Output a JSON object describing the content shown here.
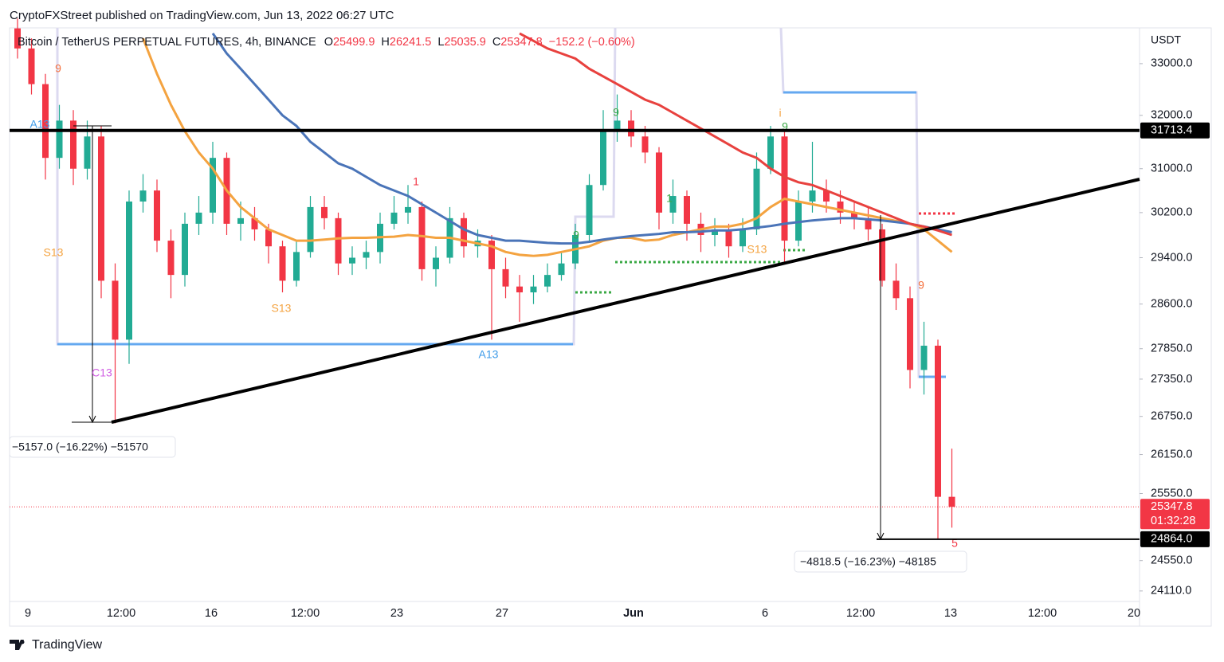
{
  "header": {
    "published": "CryptoFXStreet published on TradingView.com, Jun 13, 2022 06:27 UTC"
  },
  "chart_data": {
    "type": "candlestick",
    "title": "Bitcoin / TetherUS PERPETUAL FUTURES, 4h, BINANCE",
    "ohlc_prefixes": [
      "O",
      "H",
      "L",
      "C"
    ],
    "change": "−152.2 (−0.60%)",
    "currency": "USDT",
    "x_labels": [
      "9",
      "12:00",
      "16",
      "12:00",
      "23",
      "27",
      "Jun",
      "6",
      "12:00",
      "13",
      "12:00",
      "20"
    ],
    "up_color": "#22ab94",
    "down_color": "#f23645",
    "open": [
      33700,
      33300,
      32600,
      31200,
      31900,
      31000,
      31600,
      29000,
      28000,
      30400,
      30600,
      29700,
      29100,
      30000,
      30200,
      31200,
      30000,
      30100,
      29900,
      29600,
      29000,
      29500,
      30300,
      30100,
      29300,
      29400,
      29500,
      30000,
      30200,
      30300,
      29200,
      29400,
      30100,
      29600,
      29700,
      29200,
      28900,
      28800,
      28900,
      29100,
      29300,
      29800,
      30700,
      31700,
      31900,
      31600,
      31300,
      30200,
      30500,
      30000,
      29800,
      29900,
      29600,
      29900,
      31000,
      31600,
      29700,
      30400,
      30600,
      30400,
      30200,
      30100,
      29900,
      29000,
      28700,
      27500,
      27900,
      25499.9
    ],
    "high": [
      33900,
      33500,
      32800,
      32200,
      32100,
      31900,
      31800,
      29300,
      30600,
      30900,
      30800,
      29900,
      30200,
      30500,
      31500,
      31300,
      30400,
      30300,
      30000,
      29700,
      29700,
      30500,
      30500,
      30200,
      29600,
      29700,
      30200,
      30500,
      30700,
      30400,
      29600,
      30300,
      30200,
      29900,
      29800,
      29400,
      29100,
      29100,
      29300,
      29500,
      30000,
      30900,
      32100,
      32400,
      32100,
      31800,
      31400,
      30800,
      30600,
      30200,
      30100,
      30000,
      30100,
      31300,
      31800,
      31700,
      30600,
      31500,
      30800,
      30600,
      30400,
      30300,
      30000,
      29300,
      28900,
      28300,
      28000,
      26241.5
    ],
    "low": [
      33100,
      32400,
      30800,
      31000,
      30700,
      30800,
      28700,
      26640,
      27600,
      30200,
      29500,
      28700,
      28900,
      29800,
      30000,
      29800,
      29700,
      29700,
      29300,
      28800,
      28900,
      29400,
      29900,
      29100,
      29100,
      29200,
      29300,
      29900,
      30000,
      29000,
      28900,
      29300,
      29400,
      29400,
      28000,
      28700,
      28300,
      28600,
      28800,
      29000,
      29200,
      29700,
      30600,
      31500,
      31400,
      31100,
      29900,
      30000,
      29700,
      29500,
      29600,
      29400,
      29500,
      29800,
      30900,
      29300,
      29600,
      30200,
      30200,
      30000,
      29900,
      29700,
      28900,
      28500,
      27200,
      27100,
      24864,
      25035.9
    ],
    "close": [
      33300,
      32600,
      31200,
      31900,
      31000,
      31600,
      29000,
      28000,
      30400,
      30600,
      29700,
      29100,
      30000,
      30200,
      31200,
      30000,
      30100,
      29900,
      29600,
      29000,
      29500,
      30300,
      30100,
      29300,
      29400,
      29500,
      30000,
      30200,
      30300,
      29200,
      29400,
      30100,
      29600,
      29700,
      29200,
      28900,
      28800,
      28900,
      29100,
      29300,
      29800,
      30700,
      31700,
      31900,
      31600,
      31300,
      30200,
      30500,
      30000,
      29800,
      29900,
      29600,
      29900,
      31000,
      31600,
      29700,
      30400,
      30600,
      30400,
      30200,
      30100,
      29900,
      29000,
      28700,
      27500,
      27900,
      25499.9,
      25347.8
    ],
    "moving_averages": [
      {
        "color": "#f4a340",
        "values": [
          null,
          null,
          null,
          null,
          null,
          null,
          null,
          null,
          null,
          33500,
          32800,
          32200,
          31700,
          31300,
          31000,
          30600,
          30300,
          30100,
          29900,
          29800,
          29700,
          29700,
          29720,
          29740,
          29750,
          29750,
          29760,
          29770,
          29800,
          29780,
          29750,
          29750,
          29700,
          29650,
          29600,
          29500,
          29450,
          29430,
          29450,
          29500,
          29550,
          29600,
          29700,
          29750,
          29750,
          29700,
          29720,
          29800,
          29850,
          29900,
          29950,
          29950,
          30000,
          30100,
          30300,
          30450,
          30400,
          30350,
          30300,
          30250,
          30200,
          30150,
          30100,
          30050,
          30000,
          29900,
          29700,
          29500
        ]
      },
      {
        "color": "#4a74b8",
        "values": [
          null,
          null,
          null,
          null,
          null,
          null,
          null,
          null,
          null,
          null,
          null,
          null,
          null,
          null,
          33600,
          33200,
          32900,
          32600,
          32300,
          32000,
          31800,
          31500,
          31300,
          31100,
          31000,
          30850,
          30700,
          30600,
          30500,
          30350,
          30200,
          30050,
          29900,
          29800,
          29750,
          29700,
          29700,
          29680,
          29660,
          29650,
          29650,
          29680,
          29720,
          29750,
          29780,
          29800,
          29820,
          29850,
          29850,
          29860,
          29880,
          29880,
          29900,
          29930,
          29960,
          30000,
          30030,
          30060,
          30080,
          30100,
          30100,
          30080,
          30060,
          30030,
          30000,
          29950,
          29900,
          29850
        ]
      },
      {
        "color": "#e8413e",
        "values": [
          null,
          null,
          null,
          null,
          null,
          null,
          null,
          null,
          null,
          null,
          null,
          null,
          null,
          null,
          null,
          null,
          null,
          null,
          null,
          null,
          null,
          null,
          null,
          null,
          null,
          null,
          null,
          null,
          null,
          null,
          null,
          null,
          null,
          null,
          null,
          null,
          33600,
          33450,
          33300,
          33200,
          33100,
          32900,
          32750,
          32600,
          32450,
          32300,
          32200,
          32050,
          31900,
          31750,
          31600,
          31450,
          31300,
          31200,
          31000,
          30850,
          30750,
          30700,
          30600,
          30500,
          30400,
          30300,
          30200,
          30100,
          30000,
          29950,
          29880,
          29800
        ]
      }
    ],
    "log_scale": true,
    "grid": false,
    "ylim": [
      23960,
      33710
    ],
    "yticks": [
      {
        "value": 33000,
        "label": "33000.0"
      },
      {
        "value": 32000,
        "label": "32000.0"
      },
      {
        "value": 31000,
        "label": "31000.0"
      },
      {
        "value": 30200,
        "label": "30200.0"
      },
      {
        "value": 29400,
        "label": "29400.0"
      },
      {
        "value": 28600,
        "label": "28600.0"
      },
      {
        "value": 27850,
        "label": "27850.0"
      },
      {
        "value": 27350,
        "label": "27350.0"
      },
      {
        "value": 26750,
        "label": "26750.0"
      },
      {
        "value": 26150,
        "label": "26150.0"
      },
      {
        "value": 25550,
        "label": "25550.0"
      },
      {
        "value": 24550,
        "label": "24550.0"
      },
      {
        "value": 24110,
        "label": "24110.0"
      }
    ],
    "resistance": 31713.4,
    "last_price": 25347.8,
    "countdown": "01:32:28",
    "low_level": {
      "value": 24864,
      "label": "24864.0"
    },
    "measurements": [
      "−5157.0 (−16.22%) −51570",
      "−4818.5 (−16.23%) −48185"
    ],
    "annotations": [
      "9",
      "A13",
      "S13",
      "C13",
      "S13",
      "1",
      "A13",
      "9",
      "9",
      "1",
      "S13",
      "i",
      "9",
      "9",
      "5"
    ]
  },
  "footer": {
    "brand": "TradingView"
  }
}
